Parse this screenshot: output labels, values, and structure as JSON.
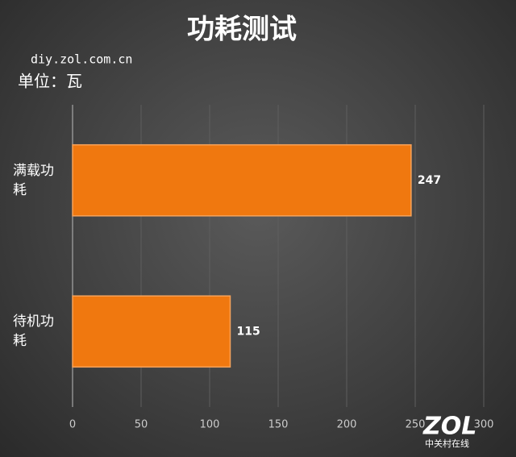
{
  "chart_data": {
    "type": "hbar",
    "title": "功耗测试",
    "subtitle": "diy.zol.com.cn",
    "unit_label": "单位：瓦",
    "categories": [
      "满载功耗",
      "待机功耗"
    ],
    "values": [
      247,
      115
    ],
    "color": "#f0780f",
    "xlim": [
      0,
      300
    ],
    "xticks": [
      0,
      50,
      100,
      150,
      200,
      250,
      300
    ],
    "grid": true,
    "watermark": {
      "logo": "ZOL",
      "text": "中关村在线"
    }
  }
}
